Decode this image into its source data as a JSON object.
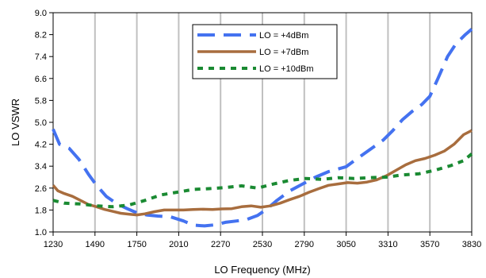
{
  "chart_data": {
    "type": "line",
    "xlabel": "LO Frequency (MHz)",
    "ylabel": "LO VSWR",
    "xlim": [
      1230,
      3830
    ],
    "ylim": [
      1.0,
      9.0
    ],
    "x_ticks": [
      "1230",
      "1490",
      "1750",
      "2010",
      "2270",
      "2530",
      "2790",
      "3050",
      "3310",
      "3570",
      "3830"
    ],
    "y_ticks": [
      "1.0",
      "1.8",
      "2.6",
      "3.4",
      "4.2",
      "5.0",
      "5.8",
      "6.6",
      "7.4",
      "8.2",
      "9.0"
    ],
    "grid": "vertical",
    "legend_position": "top-center",
    "series": [
      {
        "name": "LO = +4dBm",
        "color": "#4472f0",
        "dash": "long-dash",
        "x": [
          1230,
          1270,
          1330,
          1390,
          1450,
          1500,
          1560,
          1620,
          1690,
          1750,
          1810,
          1880,
          1960,
          2040,
          2100,
          2170,
          2240,
          2300,
          2370,
          2430,
          2500,
          2560,
          2620,
          2700,
          2780,
          2860,
          2940,
          3000,
          3050,
          3100,
          3160,
          3220,
          3280,
          3340,
          3400,
          3460,
          3520,
          3570,
          3620,
          3680,
          3730,
          3790,
          3830
        ],
        "y": [
          4.75,
          4.2,
          4.05,
          3.65,
          3.1,
          2.7,
          2.3,
          2.05,
          1.85,
          1.7,
          1.62,
          1.58,
          1.55,
          1.4,
          1.25,
          1.22,
          1.26,
          1.35,
          1.4,
          1.45,
          1.6,
          1.85,
          2.15,
          2.5,
          2.75,
          3.0,
          3.2,
          3.3,
          3.38,
          3.6,
          3.85,
          4.1,
          4.35,
          4.7,
          5.1,
          5.4,
          5.65,
          5.95,
          6.6,
          7.4,
          7.85,
          8.2,
          8.4
        ]
      },
      {
        "name": "LO = +7dBm",
        "color": "#a86d3e",
        "dash": "solid",
        "x": [
          1230,
          1260,
          1300,
          1350,
          1400,
          1450,
          1500,
          1550,
          1600,
          1650,
          1700,
          1750,
          1800,
          1860,
          1920,
          1980,
          2040,
          2100,
          2160,
          2220,
          2280,
          2340,
          2400,
          2460,
          2520,
          2580,
          2640,
          2700,
          2760,
          2820,
          2880,
          2940,
          3000,
          3060,
          3120,
          3180,
          3240,
          3300,
          3360,
          3420,
          3480,
          3540,
          3600,
          3660,
          3720,
          3780,
          3830
        ],
        "y": [
          2.7,
          2.5,
          2.4,
          2.3,
          2.15,
          2.0,
          1.92,
          1.82,
          1.75,
          1.68,
          1.65,
          1.62,
          1.66,
          1.74,
          1.8,
          1.8,
          1.8,
          1.82,
          1.83,
          1.82,
          1.84,
          1.85,
          1.92,
          1.95,
          1.9,
          1.95,
          2.05,
          2.18,
          2.3,
          2.45,
          2.58,
          2.7,
          2.75,
          2.8,
          2.78,
          2.82,
          2.9,
          3.05,
          3.25,
          3.45,
          3.6,
          3.68,
          3.8,
          3.95,
          4.2,
          4.55,
          4.7
        ]
      },
      {
        "name": "LO = +10dBm",
        "color": "#1a8a32",
        "dash": "short-dash",
        "x": [
          1230,
          1300,
          1400,
          1500,
          1600,
          1700,
          1800,
          1900,
          2000,
          2100,
          2200,
          2300,
          2400,
          2500,
          2600,
          2700,
          2800,
          2900,
          3000,
          3100,
          3200,
          3300,
          3400,
          3500,
          3600,
          3700,
          3780,
          3830
        ],
        "y": [
          2.15,
          2.05,
          2.02,
          1.95,
          1.92,
          1.98,
          2.15,
          2.35,
          2.45,
          2.55,
          2.58,
          2.62,
          2.68,
          2.6,
          2.75,
          2.88,
          2.95,
          2.92,
          2.98,
          2.95,
          2.98,
          3.0,
          3.08,
          3.12,
          3.25,
          3.42,
          3.6,
          3.85
        ]
      }
    ]
  }
}
